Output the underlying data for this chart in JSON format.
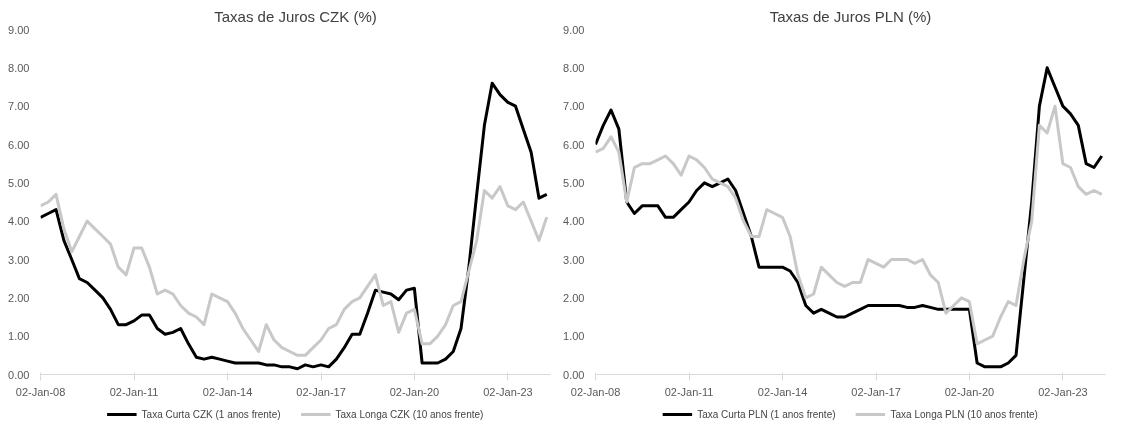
{
  "chart_data": [
    {
      "type": "line",
      "title": "Taxas de Juros CZK (%)",
      "legend": "bottom",
      "grid": false,
      "marker": "none",
      "line_style": "solid",
      "xlim": [
        "2008-01-01",
        "2024-05-15"
      ],
      "ylim": [
        0,
        9
      ],
      "xticks": [
        {
          "value": "2008-01-02",
          "label": "02-Jan-08"
        },
        {
          "value": "2011-01-02",
          "label": "02-Jan-11"
        },
        {
          "value": "2014-01-02",
          "label": "02-Jan-14"
        },
        {
          "value": "2017-01-02",
          "label": "02-Jan-17"
        },
        {
          "value": "2020-01-02",
          "label": "02-Jan-20"
        },
        {
          "value": "2023-01-02",
          "label": "02-Jan-23"
        }
      ],
      "yticks": [
        {
          "value": 0,
          "label": "0.00"
        },
        {
          "value": 1,
          "label": "1.00"
        },
        {
          "value": 2,
          "label": "2.00"
        },
        {
          "value": 3,
          "label": "3.00"
        },
        {
          "value": 4,
          "label": "4.00"
        },
        {
          "value": 5,
          "label": "5.00"
        },
        {
          "value": 6,
          "label": "6.00"
        },
        {
          "value": 7,
          "label": "7.00"
        },
        {
          "value": 8,
          "label": "8.00"
        },
        {
          "value": 9,
          "label": "9.00"
        }
      ],
      "x": [
        "2008-01",
        "2008-04",
        "2008-07",
        "2008-10",
        "2009-01",
        "2009-04",
        "2009-07",
        "2009-10",
        "2010-01",
        "2010-04",
        "2010-07",
        "2010-10",
        "2011-01",
        "2011-04",
        "2011-07",
        "2011-10",
        "2012-01",
        "2012-04",
        "2012-07",
        "2012-10",
        "2013-01",
        "2013-04",
        "2013-07",
        "2013-10",
        "2014-01",
        "2014-04",
        "2014-07",
        "2014-10",
        "2015-01",
        "2015-04",
        "2015-07",
        "2015-10",
        "2016-01",
        "2016-04",
        "2016-07",
        "2016-10",
        "2017-01",
        "2017-04",
        "2017-07",
        "2017-10",
        "2018-01",
        "2018-04",
        "2018-07",
        "2018-10",
        "2019-01",
        "2019-04",
        "2019-07",
        "2019-10",
        "2020-01",
        "2020-04",
        "2020-07",
        "2020-10",
        "2021-01",
        "2021-04",
        "2021-07",
        "2021-10",
        "2022-01",
        "2022-04",
        "2022-07",
        "2022-10",
        "2023-01",
        "2023-04",
        "2023-07",
        "2023-10",
        "2024-01",
        "2024-04"
      ],
      "series": [
        {
          "name": "Taxa Curta CZK (1 anos frente)",
          "color": "#000000",
          "values": [
            4.1,
            4.2,
            4.3,
            3.5,
            3.0,
            2.5,
            2.4,
            2.2,
            2.0,
            1.7,
            1.3,
            1.3,
            1.4,
            1.55,
            1.55,
            1.2,
            1.05,
            1.1,
            1.2,
            0.8,
            0.45,
            0.4,
            0.45,
            0.4,
            0.35,
            0.3,
            0.3,
            0.3,
            0.3,
            0.25,
            0.25,
            0.2,
            0.2,
            0.15,
            0.25,
            0.2,
            0.25,
            0.2,
            0.4,
            0.7,
            1.05,
            1.05,
            1.6,
            2.2,
            2.15,
            2.1,
            1.95,
            2.2,
            2.25,
            0.3,
            0.3,
            0.3,
            0.4,
            0.6,
            1.2,
            2.8,
            4.7,
            6.5,
            7.6,
            7.3,
            7.1,
            7.0,
            6.4,
            5.8,
            4.6,
            4.7
          ]
        },
        {
          "name": "Taxa Longa CZK (10 anos frente)",
          "color": "#c8c8c8",
          "values": [
            4.4,
            4.5,
            4.7,
            3.8,
            3.2,
            3.6,
            4.0,
            3.8,
            3.6,
            3.4,
            2.8,
            2.6,
            3.3,
            3.3,
            2.8,
            2.1,
            2.2,
            2.1,
            1.8,
            1.6,
            1.5,
            1.3,
            2.1,
            2.0,
            1.9,
            1.6,
            1.2,
            0.9,
            0.6,
            1.3,
            0.9,
            0.7,
            0.6,
            0.5,
            0.5,
            0.7,
            0.9,
            1.2,
            1.3,
            1.7,
            1.9,
            2.0,
            2.3,
            2.6,
            1.8,
            1.9,
            1.1,
            1.6,
            1.7,
            0.8,
            0.8,
            1.0,
            1.3,
            1.8,
            1.9,
            2.7,
            3.5,
            4.8,
            4.6,
            4.9,
            4.4,
            4.3,
            4.5,
            4.0,
            3.5,
            4.1
          ]
        }
      ]
    },
    {
      "type": "line",
      "title": "Taxas de Juros PLN (%)",
      "legend": "bottom",
      "grid": false,
      "marker": "none",
      "line_style": "solid",
      "xlim": [
        "2008-01-01",
        "2024-05-15"
      ],
      "ylim": [
        0,
        9
      ],
      "xticks": [
        {
          "value": "2008-01-02",
          "label": "02-Jan-08"
        },
        {
          "value": "2011-01-02",
          "label": "02-Jan-11"
        },
        {
          "value": "2014-01-02",
          "label": "02-Jan-14"
        },
        {
          "value": "2017-01-02",
          "label": "02-Jan-17"
        },
        {
          "value": "2020-01-02",
          "label": "02-Jan-20"
        },
        {
          "value": "2023-01-02",
          "label": "02-Jan-23"
        }
      ],
      "yticks": [
        {
          "value": 0,
          "label": "0.00"
        },
        {
          "value": 1,
          "label": "1.00"
        },
        {
          "value": 2,
          "label": "2.00"
        },
        {
          "value": 3,
          "label": "3.00"
        },
        {
          "value": 4,
          "label": "4.00"
        },
        {
          "value": 5,
          "label": "5.00"
        },
        {
          "value": 6,
          "label": "6.00"
        },
        {
          "value": 7,
          "label": "7.00"
        },
        {
          "value": 8,
          "label": "8.00"
        },
        {
          "value": 9,
          "label": "9.00"
        }
      ],
      "x": [
        "2008-01",
        "2008-04",
        "2008-07",
        "2008-10",
        "2009-01",
        "2009-04",
        "2009-07",
        "2009-10",
        "2010-01",
        "2010-04",
        "2010-07",
        "2010-10",
        "2011-01",
        "2011-04",
        "2011-07",
        "2011-10",
        "2012-01",
        "2012-04",
        "2012-07",
        "2012-10",
        "2013-01",
        "2013-04",
        "2013-07",
        "2013-10",
        "2014-01",
        "2014-04",
        "2014-07",
        "2014-10",
        "2015-01",
        "2015-04",
        "2015-07",
        "2015-10",
        "2016-01",
        "2016-04",
        "2016-07",
        "2016-10",
        "2017-01",
        "2017-04",
        "2017-07",
        "2017-10",
        "2018-01",
        "2018-04",
        "2018-07",
        "2018-10",
        "2019-01",
        "2019-04",
        "2019-07",
        "2019-10",
        "2020-01",
        "2020-04",
        "2020-07",
        "2020-10",
        "2021-01",
        "2021-04",
        "2021-07",
        "2021-10",
        "2022-01",
        "2022-04",
        "2022-07",
        "2022-10",
        "2023-01",
        "2023-04",
        "2023-07",
        "2023-10",
        "2024-01",
        "2024-04"
      ],
      "series": [
        {
          "name": "Taxa Curta PLN (1 anos frente)",
          "color": "#000000",
          "values": [
            6.0,
            6.5,
            6.9,
            6.4,
            4.5,
            4.2,
            4.4,
            4.4,
            4.4,
            4.1,
            4.1,
            4.3,
            4.5,
            4.8,
            5.0,
            4.9,
            5.0,
            5.1,
            4.8,
            4.2,
            3.6,
            2.8,
            2.8,
            2.8,
            2.8,
            2.7,
            2.4,
            1.8,
            1.6,
            1.7,
            1.6,
            1.5,
            1.5,
            1.6,
            1.7,
            1.8,
            1.8,
            1.8,
            1.8,
            1.8,
            1.75,
            1.75,
            1.8,
            1.75,
            1.7,
            1.7,
            1.7,
            1.7,
            1.7,
            0.3,
            0.2,
            0.2,
            0.2,
            0.3,
            0.5,
            2.5,
            4.5,
            7.0,
            8.0,
            7.5,
            7.0,
            6.8,
            6.5,
            5.5,
            5.4,
            5.7
          ]
        },
        {
          "name": "Taxa Longa PLN (10 anos frente)",
          "color": "#c8c8c8",
          "values": [
            5.8,
            5.9,
            6.2,
            5.8,
            4.5,
            5.4,
            5.5,
            5.5,
            5.6,
            5.7,
            5.5,
            5.2,
            5.7,
            5.6,
            5.4,
            5.1,
            5.0,
            4.9,
            4.6,
            4.0,
            3.6,
            3.6,
            4.3,
            4.2,
            4.1,
            3.6,
            2.6,
            2.0,
            2.1,
            2.8,
            2.6,
            2.4,
            2.3,
            2.4,
            2.4,
            3.0,
            2.9,
            2.8,
            3.0,
            3.0,
            3.0,
            2.9,
            3.0,
            2.6,
            2.4,
            1.6,
            1.8,
            2.0,
            1.9,
            0.8,
            0.9,
            1.0,
            1.5,
            1.9,
            1.8,
            3.0,
            4.0,
            6.5,
            6.3,
            7.0,
            5.5,
            5.4,
            4.9,
            4.7,
            4.8,
            4.7
          ]
        }
      ]
    }
  ]
}
